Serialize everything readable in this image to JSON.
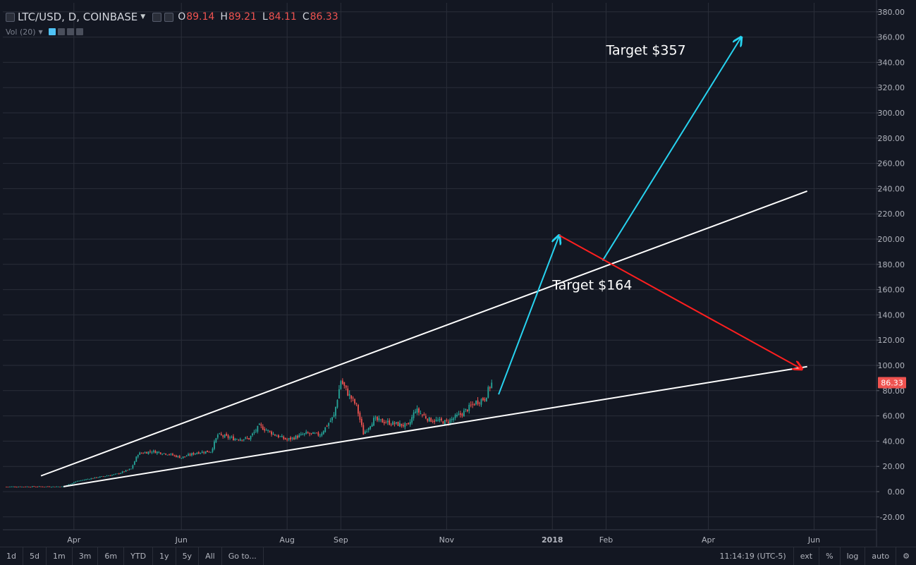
{
  "header": {
    "symbol": "LTC/USD, D, COINBASE",
    "o_label": "O",
    "o_value": "89.14",
    "h_label": "H",
    "h_value": "89.21",
    "l_label": "L",
    "l_value": "84.11",
    "c_label": "C",
    "c_value": "86.33"
  },
  "volume_label": "Vol (20)",
  "bottom_bar": {
    "ranges": [
      "1d",
      "5d",
      "1m",
      "3m",
      "6m",
      "YTD",
      "1y",
      "5y",
      "All"
    ],
    "goto": "Go to...",
    "time": "11:14:19 (UTC-5)",
    "options": [
      "ext",
      "%",
      "log",
      "auto"
    ]
  },
  "colors": {
    "background": "#131722",
    "grid": "#2a2e39",
    "up": "#26a69a",
    "down": "#ef5350",
    "trendline": "#ffffff",
    "arrow_up": "#27d3f0",
    "arrow_down": "#ff1f1f"
  },
  "chart_data": {
    "type": "candlestick",
    "series_name": "LTC/USD",
    "x_ticks": [
      "Apr",
      "Jun",
      "Aug",
      "Sep",
      "Nov",
      "2018",
      "Feb",
      "Apr",
      "Jun"
    ],
    "y_ticks": [
      "-20.00",
      "0.00",
      "20.00",
      "40.00",
      "60.00",
      "80.00",
      "100.00",
      "120.00",
      "140.00",
      "160.00",
      "180.00",
      "200.00",
      "220.00",
      "240.00",
      "260.00",
      "280.00",
      "300.00",
      "320.00",
      "340.00",
      "360.00",
      "380.00"
    ],
    "ylim": [
      -30,
      385
    ],
    "last_price": "86.33",
    "close_path": [
      [
        "2017-02-20",
        3.9
      ],
      [
        "2017-03-25",
        4.0
      ],
      [
        "2017-04-01",
        8.0
      ],
      [
        "2017-04-10",
        10.5
      ],
      [
        "2017-04-25",
        14.0
      ],
      [
        "2017-05-03",
        18.0
      ],
      [
        "2017-05-07",
        30.0
      ],
      [
        "2017-05-15",
        32.0
      ],
      [
        "2017-05-24",
        30.0
      ],
      [
        "2017-06-01",
        27.0
      ],
      [
        "2017-06-10",
        31.0
      ],
      [
        "2017-06-18",
        32.0
      ],
      [
        "2017-06-22",
        45.0
      ],
      [
        "2017-07-01",
        42.0
      ],
      [
        "2017-07-10",
        42.0
      ],
      [
        "2017-07-16",
        52.0
      ],
      [
        "2017-07-25",
        45.0
      ],
      [
        "2017-08-01",
        41.0
      ],
      [
        "2017-08-12",
        46.0
      ],
      [
        "2017-08-20",
        45.0
      ],
      [
        "2017-08-28",
        60.0
      ],
      [
        "2017-09-01",
        88.0
      ],
      [
        "2017-09-05",
        78.0
      ],
      [
        "2017-09-10",
        68.0
      ],
      [
        "2017-09-14",
        46.0
      ],
      [
        "2017-09-20",
        57.0
      ],
      [
        "2017-10-01",
        54.0
      ],
      [
        "2017-10-10",
        52.0
      ],
      [
        "2017-10-14",
        65.0
      ],
      [
        "2017-10-22",
        57.0
      ],
      [
        "2017-11-01",
        55.0
      ],
      [
        "2017-11-10",
        62.0
      ],
      [
        "2017-11-18",
        71.0
      ],
      [
        "2017-11-23",
        74.0
      ],
      [
        "2017-11-27",
        86.33
      ]
    ],
    "lines": [
      {
        "kind": "trendline",
        "from": [
          "2017-03-12",
          12.5
        ],
        "to": [
          "2018-05-28",
          238.0
        ]
      },
      {
        "kind": "trendline",
        "from": [
          "2017-03-25",
          4.0
        ],
        "to": [
          "2018-05-28",
          99.0
        ]
      },
      {
        "kind": "arrow-up",
        "from": [
          "2017-12-01",
          77.0
        ],
        "to": [
          "2018-01-05",
          203.0
        ]
      },
      {
        "kind": "arrow-up",
        "from": [
          "2018-01-30",
          183.0
        ],
        "to": [
          "2018-04-20",
          360.0
        ]
      },
      {
        "kind": "arrow-down",
        "from": [
          "2018-01-05",
          203.0
        ],
        "to": [
          "2018-05-25",
          97.0
        ]
      }
    ],
    "annotations": [
      {
        "text": "Target $357",
        "at": [
          "2018-02-01",
          346.0
        ]
      },
      {
        "text": "Target $164",
        "at": [
          "2018-01-01",
          160.0
        ]
      }
    ]
  }
}
